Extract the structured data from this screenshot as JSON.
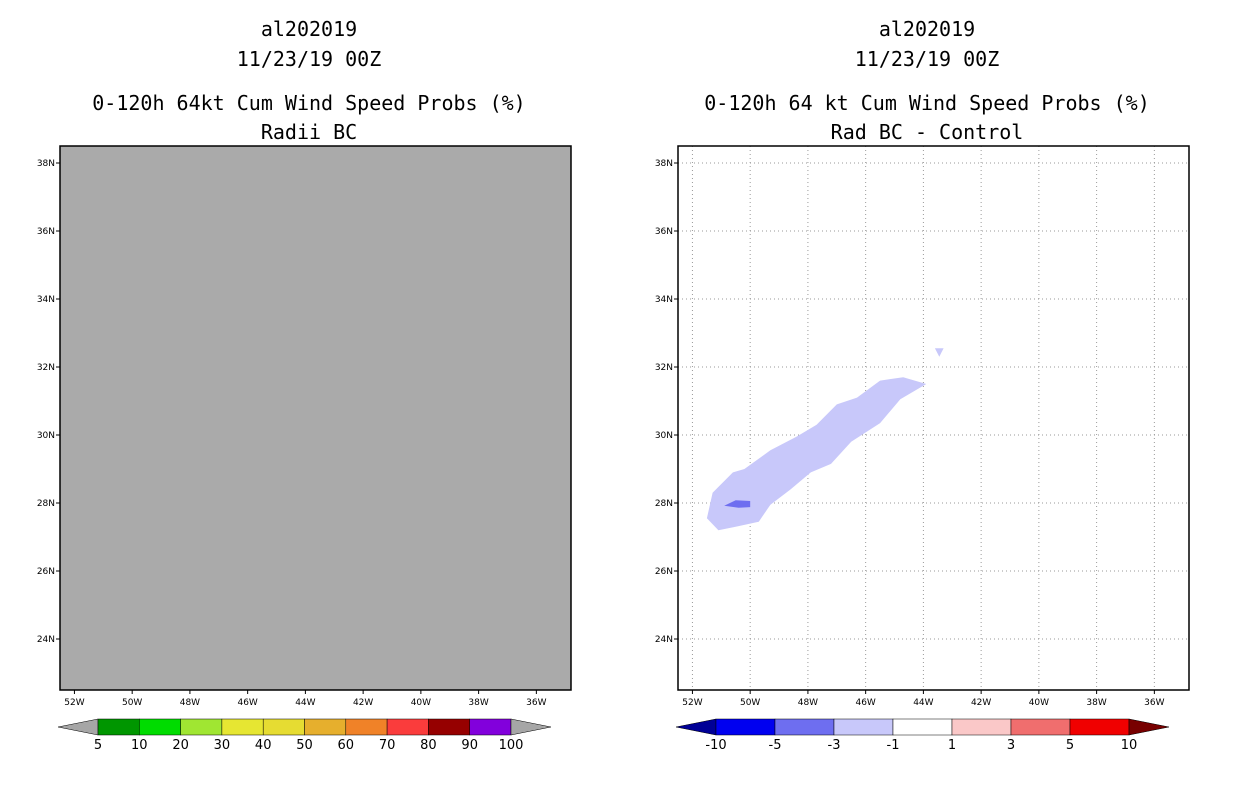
{
  "chart_data": [
    {
      "type": "heatmap",
      "title_lines": [
        "al202019",
        "11/23/19 00Z",
        "0-120h 64kt Cum Wind Speed Probs (%)",
        "Radii BC"
      ],
      "xlim": [
        -52.5,
        -34.8
      ],
      "ylim": [
        22.5,
        38.5
      ],
      "x_ticks": [
        {
          "v": -52,
          "label": "52W"
        },
        {
          "v": -50,
          "label": "50W"
        },
        {
          "v": -48,
          "label": "48W"
        },
        {
          "v": -46,
          "label": "46W"
        },
        {
          "v": -44,
          "label": "44W"
        },
        {
          "v": -42,
          "label": "42W"
        },
        {
          "v": -40,
          "label": "40W"
        },
        {
          "v": -38,
          "label": "38W"
        },
        {
          "v": -36,
          "label": "36W"
        }
      ],
      "y_ticks": [
        {
          "v": 24,
          "label": "24N"
        },
        {
          "v": 26,
          "label": "26N"
        },
        {
          "v": 28,
          "label": "28N"
        },
        {
          "v": 30,
          "label": "30N"
        },
        {
          "v": 32,
          "label": "32N"
        },
        {
          "v": 34,
          "label": "34N"
        },
        {
          "v": 36,
          "label": "36N"
        },
        {
          "v": 38,
          "label": "38N"
        }
      ],
      "gridlines": false,
      "background": "#aaaaaa",
      "colorbar": {
        "colors": [
          "#a6a6a6",
          "#009600",
          "#00dc00",
          "#a0e632",
          "#e6e632",
          "#e6dc32",
          "#e6af2d",
          "#f08228",
          "#fa3c3c",
          "#960000",
          "#8200dc",
          "#a6a6a6"
        ],
        "labels": [
          "5",
          "10",
          "20",
          "30",
          "40",
          "50",
          "60",
          "70",
          "80",
          "90",
          "100"
        ]
      },
      "regions": []
    },
    {
      "type": "heatmap",
      "title_lines": [
        "al202019",
        "11/23/19 00Z",
        "0-120h 64 kt Cum Wind Speed Probs (%)",
        "Rad BC - Control"
      ],
      "xlim": [
        -52.5,
        -34.8
      ],
      "ylim": [
        22.5,
        38.5
      ],
      "x_ticks": [
        {
          "v": -52,
          "label": "52W"
        },
        {
          "v": -50,
          "label": "50W"
        },
        {
          "v": -48,
          "label": "48W"
        },
        {
          "v": -46,
          "label": "46W"
        },
        {
          "v": -44,
          "label": "44W"
        },
        {
          "v": -42,
          "label": "42W"
        },
        {
          "v": -40,
          "label": "40W"
        },
        {
          "v": -38,
          "label": "38W"
        },
        {
          "v": -36,
          "label": "36W"
        }
      ],
      "y_ticks": [
        {
          "v": 24,
          "label": "24N"
        },
        {
          "v": 26,
          "label": "26N"
        },
        {
          "v": 28,
          "label": "28N"
        },
        {
          "v": 30,
          "label": "30N"
        },
        {
          "v": 32,
          "label": "32N"
        },
        {
          "v": 34,
          "label": "34N"
        },
        {
          "v": 36,
          "label": "36N"
        },
        {
          "v": 38,
          "label": "38N"
        }
      ],
      "gridlines": true,
      "background": "#ffffff",
      "colorbar": {
        "colors": [
          "#000096",
          "#0000f0",
          "#6e6ef0",
          "#c8c8fa",
          "#ffffff",
          "#fac8c8",
          "#f06e6e",
          "#f00000",
          "#780000"
        ],
        "labels": [
          "-10",
          "-5",
          "-3",
          "-1",
          "1",
          "3",
          "5",
          "10"
        ]
      },
      "regions": [
        {
          "name": "diff-region-minus1-to-minus3",
          "color": "#c8c8fa",
          "lonlat": [
            [
              -51.1,
              27.2
            ],
            [
              -51.5,
              27.55
            ],
            [
              -51.3,
              28.3
            ],
            [
              -50.6,
              28.9
            ],
            [
              -50.2,
              29.0
            ],
            [
              -49.3,
              29.55
            ],
            [
              -48.4,
              29.95
            ],
            [
              -47.7,
              30.3
            ],
            [
              -47.0,
              30.9
            ],
            [
              -46.3,
              31.1
            ],
            [
              -45.5,
              31.6
            ],
            [
              -44.7,
              31.7
            ],
            [
              -43.9,
              31.5
            ],
            [
              -44.8,
              31.05
            ],
            [
              -45.5,
              30.35
            ],
            [
              -46.5,
              29.8
            ],
            [
              -47.2,
              29.15
            ],
            [
              -47.9,
              28.9
            ],
            [
              -48.6,
              28.4
            ],
            [
              -49.3,
              27.95
            ],
            [
              -49.7,
              27.45
            ],
            [
              -50.5,
              27.3
            ]
          ]
        },
        {
          "name": "diff-region-minus3-to-minus5",
          "color": "#6e6ef0",
          "lonlat": [
            [
              -50.9,
              27.92
            ],
            [
              -50.5,
              28.08
            ],
            [
              -50.0,
              28.06
            ],
            [
              -50.0,
              27.88
            ],
            [
              -50.4,
              27.86
            ]
          ]
        },
        {
          "name": "diff-region-small-blob",
          "color": "#c8c8fa",
          "lonlat": [
            [
              -43.6,
              32.55
            ],
            [
              -43.3,
              32.55
            ],
            [
              -43.45,
              32.3
            ]
          ]
        }
      ]
    }
  ]
}
